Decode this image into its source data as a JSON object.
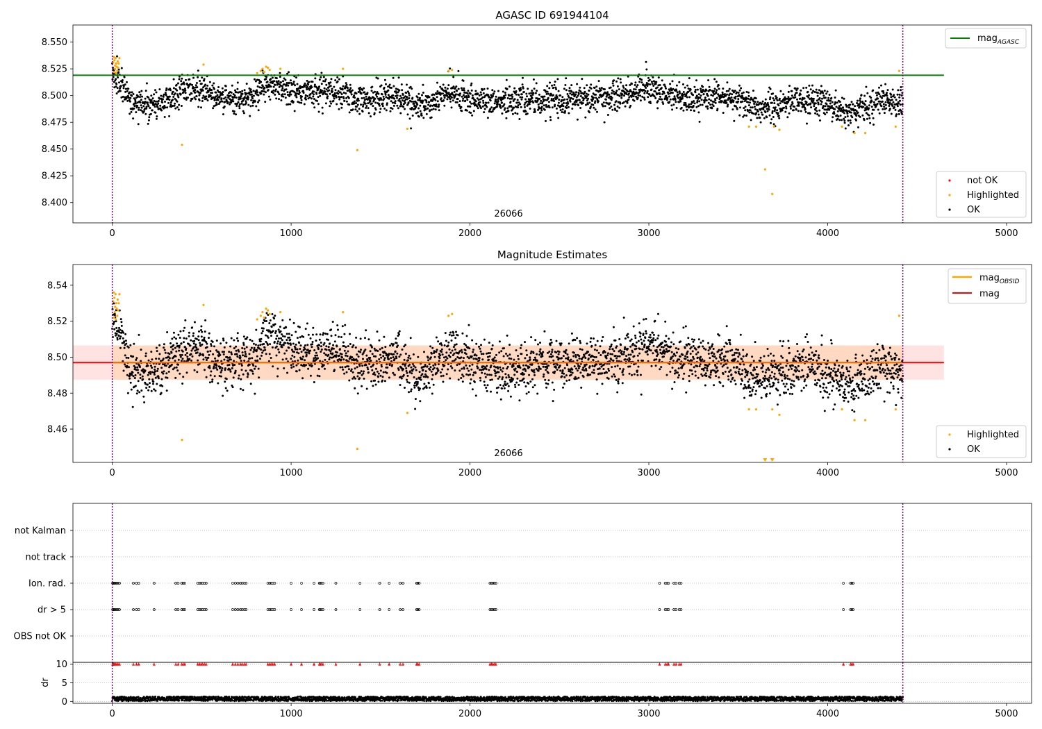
{
  "colors": {
    "ok": "#000000",
    "not_ok": "#ff0000",
    "highlighted": "#ffa500",
    "agasc_line": "#008000",
    "obsid_line": "#ffa500",
    "mag_line": "#ff0000",
    "band_fill": "#ffb6a8",
    "obsid_marker": "#800080",
    "grid": "#b0b0b0"
  },
  "chart_data": [
    {
      "type": "scatter",
      "title": "AGASC ID 691944104",
      "xlabel": "",
      "ylabel": "",
      "xlim": [
        -220,
        5140
      ],
      "ylim": [
        8.381,
        8.566
      ],
      "xticks": [
        0,
        1000,
        2000,
        3000,
        4000,
        5000
      ],
      "yticks": [
        8.4,
        8.425,
        8.45,
        8.475,
        8.5,
        8.525,
        8.55
      ],
      "ytick_labels": [
        "8.400",
        "8.425",
        "8.450",
        "8.475",
        "8.500",
        "8.525",
        "8.550"
      ],
      "obsid_boundaries": [
        0,
        4420
      ],
      "obsid_label": "26066",
      "obsid_label_x": 2210,
      "mag_agasc": 8.519,
      "mag_line_xrange": [
        -220,
        4650
      ],
      "legend_top": {
        "position": "top-right",
        "entries": [
          "mag_AGASC"
        ],
        "label_main": "mag",
        "label_sub": "AGASC"
      },
      "legend_bottom": {
        "position": "bottom-right",
        "entries": [
          "not OK",
          "Highlighted",
          "OK"
        ]
      },
      "ok_trend": {
        "x": [
          0,
          50,
          100,
          200,
          300,
          400,
          500,
          600,
          700,
          800,
          850,
          900,
          1000,
          1100,
          1200,
          1300,
          1400,
          1500,
          1600,
          1700,
          1800,
          1900,
          2000,
          2200,
          2500,
          2800,
          3000,
          3200,
          3400,
          3500,
          3600,
          3700,
          3800,
          3900,
          4000,
          4100,
          4200,
          4300,
          4420
        ],
        "y": [
          8.521,
          8.513,
          8.494,
          8.49,
          8.497,
          8.505,
          8.506,
          8.496,
          8.497,
          8.499,
          8.511,
          8.512,
          8.505,
          8.502,
          8.505,
          8.501,
          8.495,
          8.498,
          8.501,
          8.488,
          8.496,
          8.503,
          8.497,
          8.494,
          8.497,
          8.499,
          8.506,
          8.498,
          8.499,
          8.495,
          8.487,
          8.49,
          8.495,
          8.496,
          8.491,
          8.485,
          8.488,
          8.496,
          8.492
        ],
        "scatter": 0.007,
        "count": 3000
      },
      "highlighted": {
        "x": [
          5,
          8,
          10,
          12,
          14,
          16,
          18,
          20,
          22,
          25,
          28,
          30,
          33,
          36,
          40,
          390,
          510,
          810,
          830,
          840,
          850,
          860,
          870,
          880,
          940,
          1290,
          1370,
          1650,
          1880,
          1900,
          3560,
          3600,
          3650,
          3690,
          3700,
          3730,
          4080,
          4150,
          4210,
          4380,
          4400
        ],
        "y": [
          8.531,
          8.536,
          8.522,
          8.533,
          8.525,
          8.528,
          8.535,
          8.521,
          8.53,
          8.527,
          8.523,
          8.532,
          8.526,
          8.53,
          8.535,
          8.454,
          8.529,
          8.521,
          8.523,
          8.525,
          8.522,
          8.527,
          8.526,
          8.524,
          8.525,
          8.525,
          8.449,
          8.469,
          8.523,
          8.524,
          8.471,
          8.471,
          8.431,
          8.408,
          8.471,
          8.468,
          8.471,
          8.465,
          8.465,
          8.471,
          8.523
        ]
      },
      "not_ok": {
        "x": [],
        "y": []
      }
    },
    {
      "type": "scatter",
      "title": "Magnitude Estimates",
      "xlabel": "",
      "ylabel": "",
      "xlim": [
        -220,
        5140
      ],
      "ylim": [
        8.4415,
        8.5515
      ],
      "xticks": [
        0,
        1000,
        2000,
        3000,
        4000,
        5000
      ],
      "yticks": [
        8.46,
        8.48,
        8.5,
        8.52,
        8.54
      ],
      "ytick_labels": [
        "8.46",
        "8.48",
        "8.50",
        "8.52",
        "8.54"
      ],
      "obsid_boundaries": [
        0,
        4420
      ],
      "obsid_label": "26066",
      "obsid_label_x": 2210,
      "mag": 8.497,
      "mag_band": [
        8.4875,
        8.5065
      ],
      "mag_obsid": {
        "x": [
          0,
          4420
        ],
        "y": [
          8.497,
          8.497
        ]
      },
      "mag_line_xrange": [
        -220,
        4650
      ],
      "legend_top": {
        "position": "top-right",
        "entries": [
          "mag_OBSID",
          "mag"
        ],
        "label_main": "mag",
        "label_sub": "OBSID",
        "label_second": "mag"
      },
      "legend_bottom": {
        "position": "bottom-right",
        "entries": [
          "Highlighted",
          "OK"
        ]
      },
      "ok_trend": {
        "x": [
          0,
          50,
          100,
          200,
          300,
          400,
          500,
          600,
          700,
          800,
          850,
          900,
          1000,
          1100,
          1200,
          1300,
          1400,
          1500,
          1600,
          1700,
          1800,
          1900,
          2000,
          2200,
          2500,
          2800,
          3000,
          3200,
          3400,
          3500,
          3600,
          3700,
          3800,
          3900,
          4000,
          4100,
          4200,
          4300,
          4420
        ],
        "y": [
          8.521,
          8.513,
          8.494,
          8.49,
          8.497,
          8.505,
          8.506,
          8.496,
          8.497,
          8.499,
          8.511,
          8.512,
          8.505,
          8.502,
          8.505,
          8.501,
          8.495,
          8.498,
          8.501,
          8.488,
          8.496,
          8.503,
          8.497,
          8.494,
          8.497,
          8.499,
          8.506,
          8.498,
          8.499,
          8.495,
          8.487,
          8.49,
          8.495,
          8.496,
          8.491,
          8.485,
          8.488,
          8.496,
          8.492
        ],
        "scatter": 0.007,
        "count": 3000
      },
      "highlighted": {
        "x": [
          5,
          8,
          10,
          12,
          14,
          16,
          18,
          20,
          22,
          25,
          28,
          30,
          33,
          36,
          40,
          390,
          510,
          810,
          830,
          840,
          850,
          860,
          870,
          880,
          940,
          1290,
          1370,
          1650,
          1880,
          1900,
          3560,
          3600,
          3690,
          3730,
          4080,
          4150,
          4210,
          4380,
          4400
        ],
        "y": [
          8.531,
          8.536,
          8.522,
          8.533,
          8.525,
          8.528,
          8.535,
          8.521,
          8.53,
          8.527,
          8.523,
          8.532,
          8.526,
          8.53,
          8.535,
          8.454,
          8.529,
          8.521,
          8.523,
          8.525,
          8.522,
          8.527,
          8.526,
          8.524,
          8.525,
          8.525,
          8.449,
          8.469,
          8.523,
          8.524,
          8.471,
          8.471,
          8.471,
          8.468,
          8.471,
          8.465,
          8.465,
          8.471,
          8.523
        ]
      },
      "below_range_markers": {
        "x": [
          3650,
          3690
        ],
        "y": [
          8.4415,
          8.4415
        ]
      }
    },
    {
      "type": "scatter",
      "title": "",
      "xlabel": "",
      "ylabel": "",
      "xlim": [
        -220,
        5140
      ],
      "categories": [
        "OBS not OK",
        "dr > 5",
        "Ion. rad.",
        "not track",
        "not Kalman"
      ],
      "obsid_boundaries": [
        0,
        4420
      ],
      "flags": {
        "Ion. rad.": [
          2,
          5,
          8,
          12,
          18,
          25,
          32,
          40,
          118,
          135,
          148,
          234,
          355,
          368,
          388,
          397,
          405,
          478,
          488,
          496,
          505,
          515,
          525,
          673,
          688,
          702,
          716,
          726,
          738,
          748,
          870,
          880,
          888,
          898,
          908,
          1000,
          1058,
          1128,
          1158,
          1162,
          1168,
          1178,
          1250,
          1385,
          1495,
          1548,
          1610,
          1625,
          1702,
          1708,
          1716,
          2112,
          2120,
          2128,
          2136,
          2145,
          3060,
          3092,
          3102,
          3110,
          3140,
          3152,
          3170,
          3180,
          4088,
          4128,
          4135,
          4142
        ],
        "dr > 5": [
          2,
          5,
          8,
          12,
          18,
          25,
          32,
          40,
          118,
          135,
          148,
          234,
          355,
          368,
          388,
          397,
          405,
          478,
          488,
          496,
          505,
          515,
          525,
          673,
          688,
          702,
          716,
          726,
          738,
          748,
          870,
          880,
          888,
          898,
          908,
          1000,
          1058,
          1128,
          1158,
          1162,
          1168,
          1178,
          1250,
          1385,
          1495,
          1548,
          1610,
          1625,
          1702,
          1708,
          1716,
          2112,
          2120,
          2128,
          2136,
          2145,
          3060,
          3092,
          3102,
          3110,
          3140,
          3152,
          3170,
          3180,
          4088,
          4128,
          4135,
          4142
        ],
        "not track": [],
        "not Kalman": [],
        "OBS not OK": []
      }
    },
    {
      "type": "scatter",
      "title": "",
      "xlabel": "",
      "ylabel": "dr",
      "xlim": [
        -220,
        5140
      ],
      "ylim": [
        -0.5,
        10.5
      ],
      "xticks": [
        0,
        1000,
        2000,
        3000,
        4000,
        5000
      ],
      "yticks": [
        0,
        5,
        10
      ],
      "dr_clipped_value": 10,
      "dr_clipped_x": [
        2,
        5,
        8,
        12,
        18,
        25,
        32,
        40,
        118,
        135,
        148,
        234,
        355,
        368,
        388,
        397,
        405,
        478,
        488,
        496,
        505,
        515,
        525,
        673,
        688,
        702,
        716,
        726,
        738,
        748,
        870,
        880,
        888,
        898,
        908,
        1000,
        1058,
        1128,
        1158,
        1162,
        1168,
        1178,
        1250,
        1385,
        1495,
        1548,
        1610,
        1625,
        1702,
        1708,
        1716,
        2112,
        2120,
        2128,
        2136,
        2145,
        3060,
        3092,
        3102,
        3110,
        3140,
        3152,
        3170,
        3180,
        4088,
        4128,
        4135,
        4142
      ],
      "dr_typical": [
        0.1,
        1.3
      ],
      "count": 3000,
      "obsid_boundaries": [
        0,
        4420
      ]
    }
  ]
}
